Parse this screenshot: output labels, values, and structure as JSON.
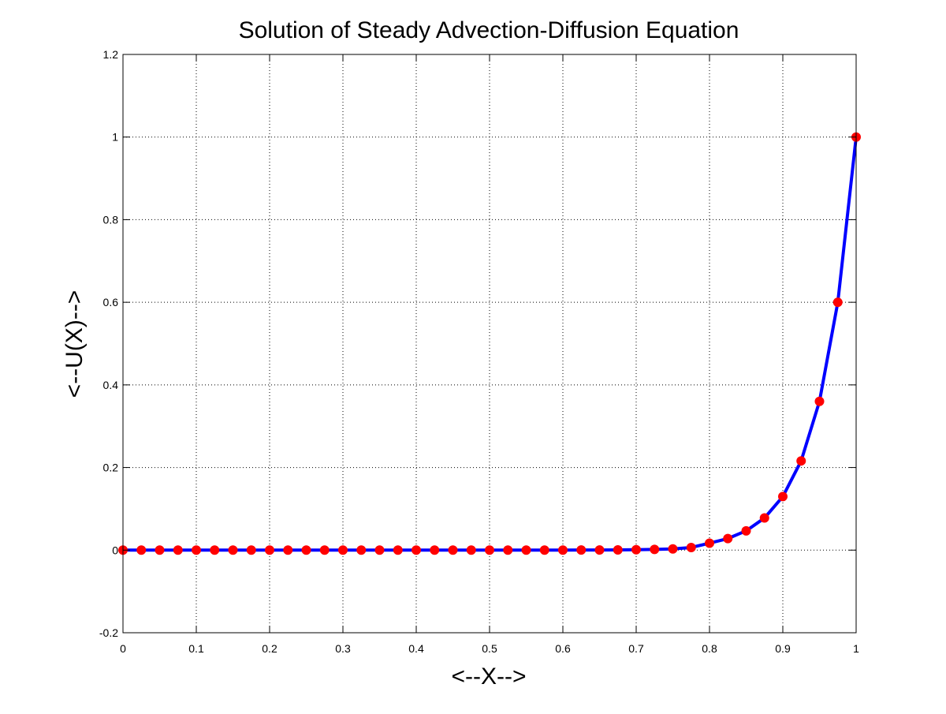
{
  "chart_data": {
    "type": "line",
    "title": "Solution of Steady Advection-Diffusion Equation",
    "xlabel": "<--X-->",
    "ylabel": "<--U(X)-->",
    "xlim": [
      0,
      1
    ],
    "ylim": [
      -0.2,
      1.2
    ],
    "xticks": [
      "0",
      "0.1",
      "0.2",
      "0.3",
      "0.4",
      "0.5",
      "0.6",
      "0.7",
      "0.8",
      "0.9",
      "1"
    ],
    "yticks": [
      "-0.2",
      "0",
      "0.2",
      "0.4",
      "0.6",
      "0.8",
      "1",
      "1.2"
    ],
    "grid": true,
    "curve_color": "#0000ff",
    "marker_color": "#ff0000",
    "series": [
      {
        "style": "line",
        "x": [
          0,
          0.025,
          0.05,
          0.075,
          0.1,
          0.125,
          0.15,
          0.175,
          0.2,
          0.225,
          0.25,
          0.275,
          0.3,
          0.325,
          0.35,
          0.375,
          0.4,
          0.425,
          0.45,
          0.475,
          0.5,
          0.525,
          0.55,
          0.575,
          0.6,
          0.625,
          0.65,
          0.675,
          0.7,
          0.725,
          0.75,
          0.775,
          0.8,
          0.825,
          0.85,
          0.875,
          0.9,
          0.925,
          0.95,
          0.975,
          1
        ],
        "y": [
          0,
          0,
          0,
          0,
          0,
          0,
          0,
          0,
          0,
          0,
          0,
          0,
          0,
          0,
          0,
          0,
          0,
          0,
          0,
          0,
          0,
          0,
          0,
          0,
          0.0001,
          0.0002,
          0.0004,
          0.0006,
          0.0011,
          0.0018,
          0.003,
          0.0063,
          0.0168,
          0.028,
          0.0467,
          0.0778,
          0.1296,
          0.216,
          0.36,
          0.6,
          1.0
        ]
      },
      {
        "style": "markers",
        "x": [
          0,
          0.025,
          0.05,
          0.075,
          0.1,
          0.125,
          0.15,
          0.175,
          0.2,
          0.225,
          0.25,
          0.275,
          0.3,
          0.325,
          0.35,
          0.375,
          0.4,
          0.425,
          0.45,
          0.475,
          0.5,
          0.525,
          0.55,
          0.575,
          0.6,
          0.625,
          0.65,
          0.675,
          0.7,
          0.725,
          0.75,
          0.775,
          0.8,
          0.825,
          0.85,
          0.875,
          0.9,
          0.925,
          0.95,
          0.975,
          1
        ],
        "y": [
          0,
          0,
          0,
          0,
          0,
          0,
          0,
          0,
          0,
          0,
          0,
          0,
          0,
          0,
          0,
          0,
          0,
          0,
          0,
          0,
          0,
          0,
          0,
          0,
          0.0001,
          0.0002,
          0.0004,
          0.0006,
          0.0011,
          0.0018,
          0.003,
          0.0063,
          0.0168,
          0.028,
          0.0467,
          0.0778,
          0.1296,
          0.216,
          0.36,
          0.6,
          1.0
        ]
      }
    ]
  }
}
